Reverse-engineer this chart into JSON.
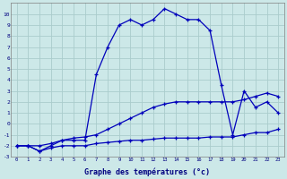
{
  "xlabel": "Graphe des températures (°c)",
  "bg_color": "#cce8e8",
  "grid_color": "#aacccc",
  "line_color": "#0000bb",
  "x_hours": [
    0,
    1,
    2,
    3,
    4,
    5,
    6,
    7,
    8,
    9,
    10,
    11,
    12,
    13,
    14,
    15,
    16,
    17,
    18,
    19,
    20,
    21,
    22,
    23
  ],
  "y_max": [
    -2.0,
    -2.0,
    -2.5,
    -2.0,
    -1.5,
    -1.5,
    -1.5,
    4.5,
    7.0,
    9.0,
    9.5,
    9.0,
    9.5,
    10.5,
    10.0,
    9.5,
    9.5,
    8.5,
    3.5,
    -1.0,
    3.0,
    1.5,
    2.0,
    1.0
  ],
  "y_avg": [
    -2.0,
    -2.0,
    -2.0,
    -1.8,
    -1.5,
    -1.3,
    -1.2,
    -1.0,
    -0.5,
    0.0,
    0.5,
    1.0,
    1.5,
    1.8,
    2.0,
    2.0,
    2.0,
    2.0,
    2.0,
    2.0,
    2.2,
    2.5,
    2.8,
    2.5
  ],
  "y_min": [
    -2.0,
    -2.0,
    -2.5,
    -2.2,
    -2.0,
    -2.0,
    -2.0,
    -1.8,
    -1.7,
    -1.6,
    -1.5,
    -1.5,
    -1.4,
    -1.3,
    -1.3,
    -1.3,
    -1.3,
    -1.2,
    -1.2,
    -1.2,
    -1.0,
    -0.8,
    -0.8,
    -0.5
  ],
  "ylim": [
    -3,
    11
  ],
  "yticks": [
    -3,
    -2,
    -1,
    0,
    1,
    2,
    3,
    4,
    5,
    6,
    7,
    8,
    9,
    10
  ],
  "xlim": [
    0,
    23
  ],
  "figsize": [
    3.2,
    2.0
  ],
  "dpi": 100
}
